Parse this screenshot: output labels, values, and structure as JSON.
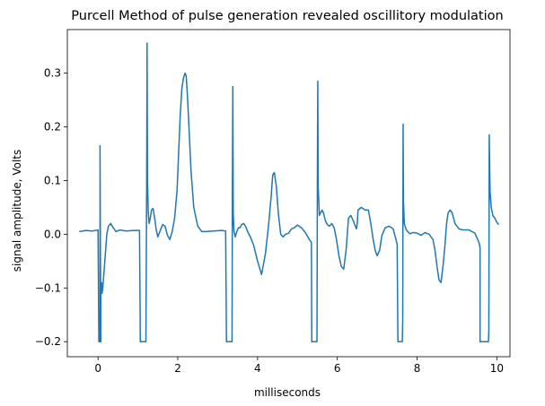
{
  "chart_data": {
    "type": "line",
    "title": "Purcell Method of pulse generation revealed oscillitory modulation",
    "xlabel": "milliseconds",
    "ylabel": "signal amplitude, Volts",
    "xlim": [
      -0.77,
      10.33
    ],
    "ylim": [
      -0.228,
      0.381
    ],
    "xticks": [
      0,
      2,
      4,
      6,
      8,
      10
    ],
    "xtick_labels": [
      "0",
      "2",
      "4",
      "6",
      "8",
      "10"
    ],
    "yticks": [
      -0.2,
      -0.1,
      0.0,
      0.1,
      0.2,
      0.3
    ],
    "ytick_labels": [
      "−0.2",
      "−0.1",
      "0.0",
      "0.1",
      "0.2",
      "0.3"
    ],
    "grid": false,
    "legend": "none",
    "series": [
      {
        "color": "#1f77b4",
        "x": [
          -0.47,
          -0.3,
          -0.15,
          0.0,
          0.02,
          0.03,
          0.05,
          0.05,
          0.06,
          0.07,
          0.07,
          0.08,
          0.09,
          0.1,
          0.12,
          0.14,
          0.18,
          0.22,
          0.26,
          0.32,
          0.38,
          0.45,
          0.55,
          0.7,
          0.9,
          1.04,
          1.06,
          1.06,
          1.2,
          1.22,
          1.23,
          1.24,
          1.26,
          1.28,
          1.31,
          1.34,
          1.38,
          1.42,
          1.46,
          1.5,
          1.55,
          1.62,
          1.68,
          1.74,
          1.8,
          1.86,
          1.92,
          1.98,
          2.02,
          2.06,
          2.1,
          2.14,
          2.18,
          2.21,
          2.24,
          2.28,
          2.33,
          2.4,
          2.5,
          2.6,
          2.7,
          2.9,
          3.1,
          3.2,
          3.22,
          3.22,
          3.36,
          3.37,
          3.38,
          3.39,
          3.41,
          3.44,
          3.48,
          3.52,
          3.56,
          3.6,
          3.65,
          3.7,
          3.75,
          3.82,
          3.9,
          4.0,
          4.1,
          4.2,
          4.28,
          4.34,
          4.38,
          4.42,
          4.47,
          4.52,
          4.58,
          4.64,
          4.7,
          4.78,
          4.85,
          4.92,
          5.0,
          5.1,
          5.2,
          5.3,
          5.35,
          5.36,
          5.36,
          5.49,
          5.5,
          5.51,
          5.52,
          5.55,
          5.58,
          5.62,
          5.66,
          5.7,
          5.75,
          5.8,
          5.86,
          5.92,
          5.98,
          6.04,
          6.1,
          6.16,
          6.22,
          6.28,
          6.34,
          6.4,
          6.48,
          6.5,
          6.52,
          6.6,
          6.7,
          6.78,
          6.84,
          6.9,
          6.95,
          7.0,
          7.06,
          7.12,
          7.2,
          7.3,
          7.4,
          7.5,
          7.52,
          7.52,
          7.63,
          7.64,
          7.65,
          7.66,
          7.68,
          7.72,
          7.76,
          7.82,
          7.9,
          8.0,
          8.1,
          8.2,
          8.3,
          8.4,
          8.45,
          8.5,
          8.55,
          8.6,
          8.65,
          8.7,
          8.74,
          8.78,
          8.83,
          8.88,
          8.95,
          9.05,
          9.15,
          9.3,
          9.45,
          9.55,
          9.58,
          9.58,
          9.78,
          9.79,
          9.8,
          9.81,
          9.83,
          9.86,
          9.9,
          9.95,
          10.0,
          10.05
        ],
        "y": [
          0.005,
          0.007,
          0.006,
          0.008,
          -0.2,
          -0.2,
          -0.2,
          0.165,
          -0.05,
          -0.2,
          -0.1,
          -0.11,
          -0.09,
          -0.11,
          -0.1,
          -0.08,
          -0.04,
          0.0,
          0.015,
          0.02,
          0.012,
          0.005,
          0.008,
          0.006,
          0.007,
          0.007,
          -0.2,
          -0.2,
          -0.2,
          0.1,
          0.356,
          0.1,
          0.04,
          0.02,
          0.03,
          0.045,
          0.048,
          0.03,
          0.008,
          -0.005,
          0.005,
          0.018,
          0.015,
          -0.002,
          -0.01,
          0.005,
          0.03,
          0.08,
          0.15,
          0.22,
          0.27,
          0.29,
          0.3,
          0.295,
          0.26,
          0.2,
          0.12,
          0.05,
          0.015,
          0.005,
          0.005,
          0.006,
          0.007,
          0.006,
          -0.2,
          -0.2,
          -0.2,
          0.1,
          0.275,
          0.04,
          0.005,
          -0.005,
          0.005,
          0.012,
          0.012,
          0.018,
          0.02,
          0.015,
          0.005,
          -0.005,
          -0.02,
          -0.05,
          -0.075,
          -0.035,
          0.02,
          0.07,
          0.11,
          0.115,
          0.09,
          0.04,
          0.0,
          -0.005,
          0.0,
          0.002,
          0.01,
          0.012,
          0.017,
          0.012,
          0.003,
          -0.01,
          -0.015,
          -0.2,
          -0.2,
          -0.2,
          0.1,
          0.285,
          0.09,
          0.035,
          0.04,
          0.045,
          0.038,
          0.025,
          0.018,
          0.015,
          0.02,
          0.012,
          -0.01,
          -0.04,
          -0.06,
          -0.065,
          -0.03,
          0.03,
          0.035,
          0.025,
          0.01,
          0.02,
          0.045,
          0.05,
          0.045,
          0.045,
          0.02,
          -0.01,
          -0.03,
          -0.04,
          -0.03,
          -0.002,
          0.012,
          0.015,
          0.01,
          -0.018,
          -0.2,
          -0.2,
          -0.2,
          -0.16,
          0.205,
          0.06,
          0.02,
          0.01,
          0.005,
          0.001,
          0.003,
          0.002,
          -0.002,
          0.003,
          0.0,
          -0.01,
          -0.03,
          -0.06,
          -0.085,
          -0.09,
          -0.06,
          -0.02,
          0.02,
          0.04,
          0.045,
          0.04,
          0.02,
          0.01,
          0.008,
          0.008,
          0.002,
          -0.015,
          -0.025,
          -0.2,
          -0.2,
          -0.2,
          -0.18,
          0.185,
          0.08,
          0.05,
          0.035,
          0.03,
          0.022,
          0.018
        ]
      }
    ]
  }
}
